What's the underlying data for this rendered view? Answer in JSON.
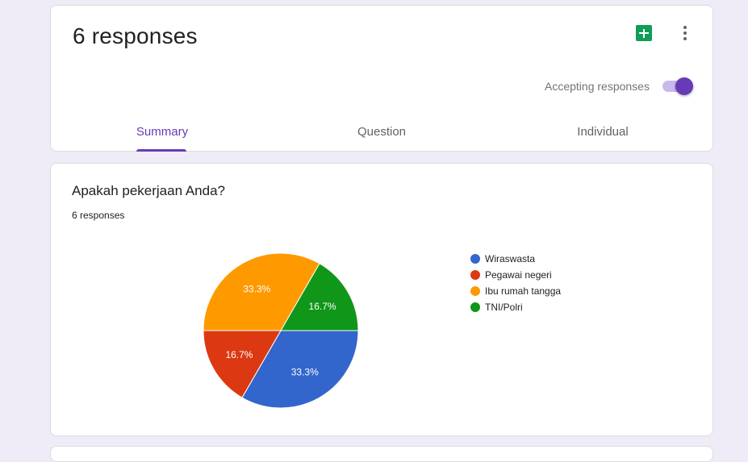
{
  "header": {
    "title": "6 responses",
    "accepting_label": "Accepting responses",
    "accepting_enabled": true,
    "icons": {
      "sheets": "google-sheets-icon",
      "more": "more-vert-icon"
    }
  },
  "tabs": [
    {
      "label": "Summary",
      "active": true
    },
    {
      "label": "Question",
      "active": false
    },
    {
      "label": "Individual",
      "active": false
    }
  ],
  "accent_color": "#673ab7",
  "question": {
    "title": "Apakah pekerjaan Anda?",
    "count_label": "6 responses"
  },
  "chart_data": {
    "type": "pie",
    "total": 6,
    "slices": [
      {
        "name": "Wiraswasta",
        "value": 2,
        "percent_label": "33.3%",
        "color": "#3366cc"
      },
      {
        "name": "Pegawai negeri",
        "value": 1,
        "percent_label": "16.7%",
        "color": "#dc3912"
      },
      {
        "name": "Ibu rumah tangga",
        "value": 2,
        "percent_label": "33.3%",
        "color": "#ff9900"
      },
      {
        "name": "TNI/Polri",
        "value": 1,
        "percent_label": "16.7%",
        "color": "#109618"
      }
    ],
    "legend_position": "right"
  }
}
